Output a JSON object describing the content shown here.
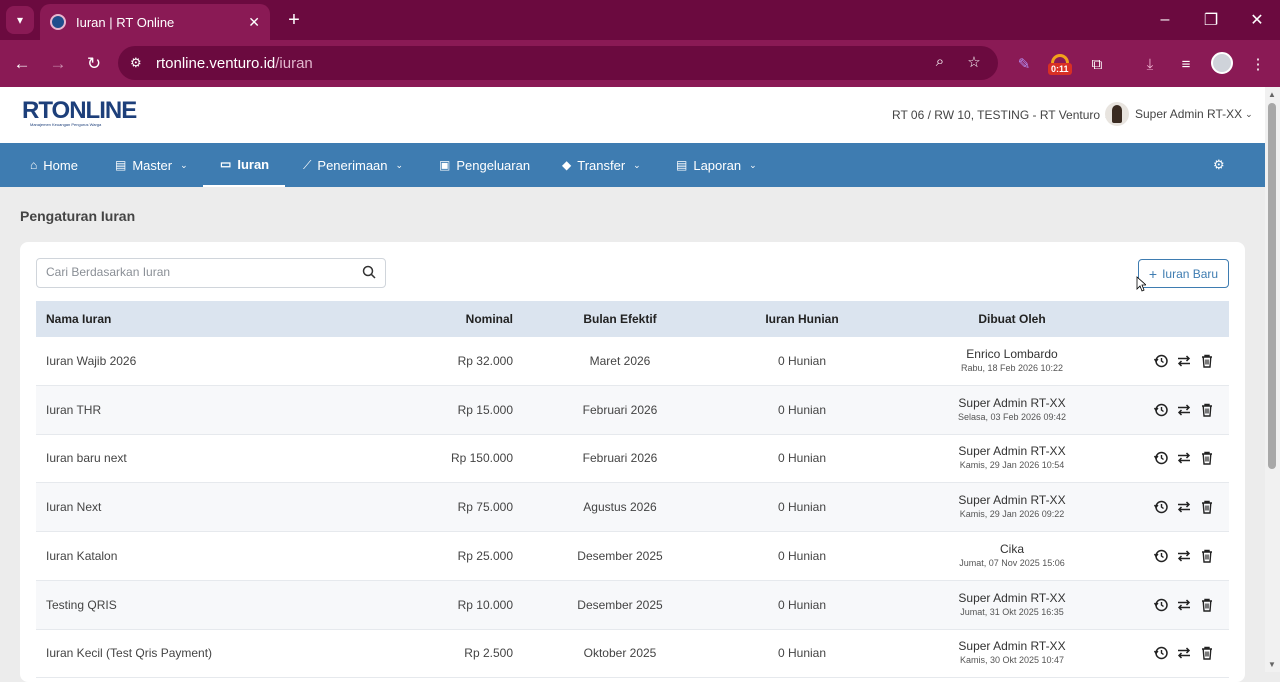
{
  "browser": {
    "tab_title": "Iuran | RT Online",
    "url_host": "rtonline.venturo.id",
    "url_path": "/iuran",
    "ext_badge": "0:11"
  },
  "header": {
    "logo_main": "RTONLINE",
    "logo_tagline": "Manajemen Keuangan Pengurus Warga",
    "rt_selector": "RT 06 / RW 10, TESTING - RT Venturo",
    "user_name": "Super Admin RT-XX"
  },
  "nav": {
    "items": [
      {
        "label": "Home",
        "icon": "home-icon"
      },
      {
        "label": "Master",
        "icon": "document-icon"
      },
      {
        "label": "Iuran",
        "icon": "card-icon"
      },
      {
        "label": "Penerimaan",
        "icon": "chart-icon"
      },
      {
        "label": "Pengeluaran",
        "icon": "image-icon"
      },
      {
        "label": "Transfer",
        "icon": "tag-icon"
      },
      {
        "label": "Laporan",
        "icon": "document-icon"
      }
    ]
  },
  "page": {
    "title": "Pengaturan Iuran",
    "search_placeholder": "Cari Berdasarkan Iuran",
    "add_button": "Iuran Baru"
  },
  "table": {
    "columns": [
      "Nama Iuran",
      "Nominal",
      "Bulan Efektif",
      "Iuran Hunian",
      "Dibuat Oleh"
    ],
    "rows": [
      {
        "name": "Iuran Wajib 2026",
        "nominal": "Rp 32.000",
        "bulan": "Maret 2026",
        "hunian": "0 Hunian",
        "by": "Enrico Lombardo",
        "date": "Rabu, 18 Feb 2026 10:22"
      },
      {
        "name": "Iuran THR",
        "nominal": "Rp 15.000",
        "bulan": "Februari 2026",
        "hunian": "0 Hunian",
        "by": "Super Admin RT-XX",
        "date": "Selasa, 03 Feb 2026 09:42"
      },
      {
        "name": "Iuran baru next",
        "nominal": "Rp 150.000",
        "bulan": "Februari 2026",
        "hunian": "0 Hunian",
        "by": "Super Admin RT-XX",
        "date": "Kamis, 29 Jan 2026 10:54"
      },
      {
        "name": "Iuran Next",
        "nominal": "Rp 75.000",
        "bulan": "Agustus 2026",
        "hunian": "0 Hunian",
        "by": "Super Admin RT-XX",
        "date": "Kamis, 29 Jan 2026 09:22"
      },
      {
        "name": "Iuran Katalon",
        "nominal": "Rp 25.000",
        "bulan": "Desember 2025",
        "hunian": "0 Hunian",
        "by": "Cika",
        "date": "Jumat, 07 Nov 2025 15:06"
      },
      {
        "name": "Testing QRIS",
        "nominal": "Rp 10.000",
        "bulan": "Desember 2025",
        "hunian": "0 Hunian",
        "by": "Super Admin RT-XX",
        "date": "Jumat, 31 Okt 2025 16:35"
      },
      {
        "name": "Iuran Kecil (Test Qris Payment)",
        "nominal": "Rp 2.500",
        "bulan": "Oktober 2025",
        "hunian": "0 Hunian",
        "by": "Super Admin RT-XX",
        "date": "Kamis, 30 Okt 2025 10:47"
      }
    ]
  },
  "colors": {
    "browser_frame": "#6b0a3f",
    "navbar": "#3e7cb1",
    "table_header": "#dbe4ef"
  }
}
